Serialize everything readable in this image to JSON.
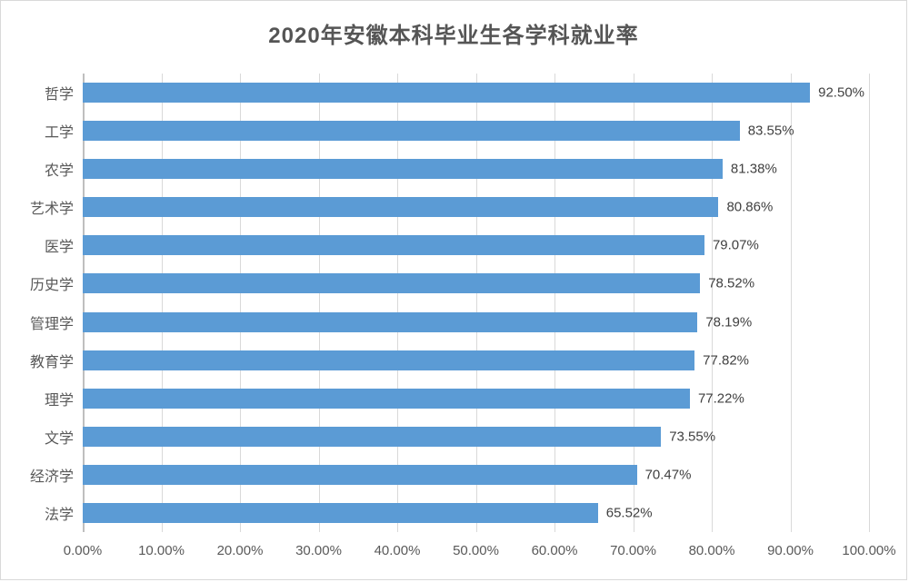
{
  "chart_data": {
    "type": "bar",
    "orientation": "horizontal",
    "title": "2020年安徽本科毕业生各学科就业率",
    "categories": [
      "哲学",
      "工学",
      "农学",
      "艺术学",
      "医学",
      "历史学",
      "管理学",
      "教育学",
      "理学",
      "文学",
      "经济学",
      "法学"
    ],
    "values": [
      92.5,
      83.55,
      81.38,
      80.86,
      79.07,
      78.52,
      78.19,
      77.82,
      77.22,
      73.55,
      70.47,
      65.52
    ],
    "value_labels": [
      "92.50%",
      "83.55%",
      "81.38%",
      "80.86%",
      "79.07%",
      "78.52%",
      "78.19%",
      "77.82%",
      "77.22%",
      "73.55%",
      "70.47%",
      "65.52%"
    ],
    "xlabel": "",
    "ylabel": "",
    "xlim": [
      0,
      100
    ],
    "x_tick_labels": [
      "0.00%",
      "10.00%",
      "20.00%",
      "30.00%",
      "40.00%",
      "50.00%",
      "60.00%",
      "70.00%",
      "80.00%",
      "90.00%",
      "100.00%"
    ],
    "x_tick_values": [
      0,
      10,
      20,
      30,
      40,
      50,
      60,
      70,
      80,
      90,
      100
    ],
    "grid": "vertical",
    "legend": "none",
    "bar_color": "#5b9bd5",
    "gridline_color": "#d9d9d9",
    "title_color": "#555555",
    "label_color": "#404040",
    "axis_text_color": "#595959"
  }
}
